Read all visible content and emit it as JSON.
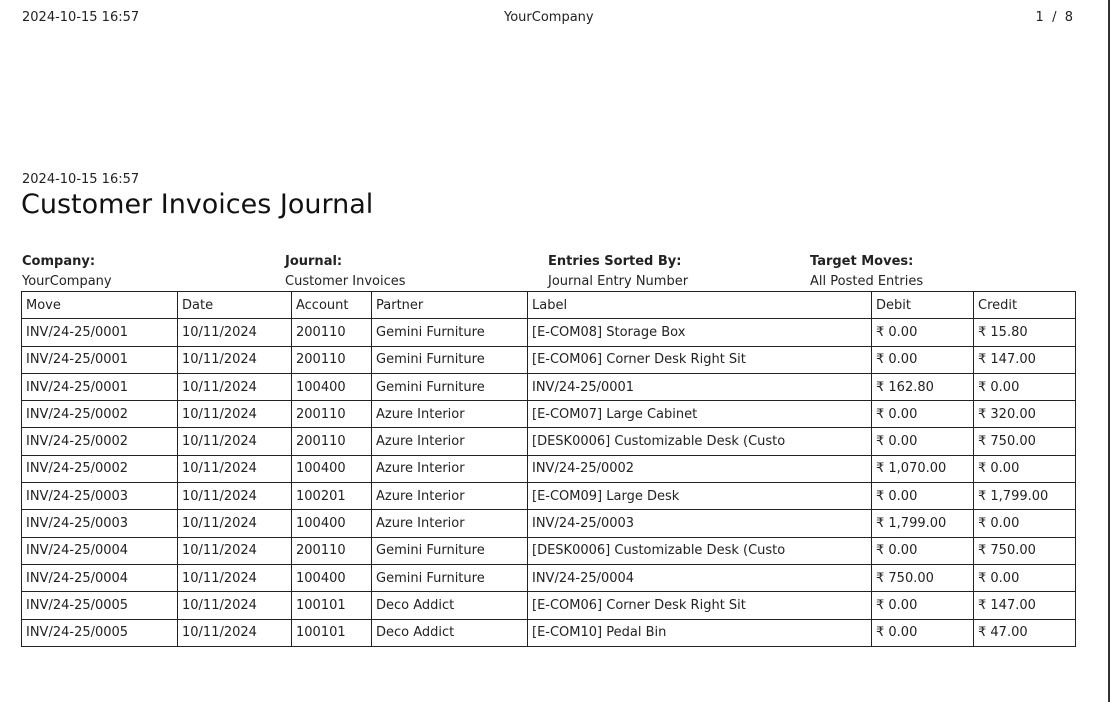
{
  "header": {
    "datetime": "2024-10-15 16:57",
    "company": "YourCompany",
    "page": "1  /  8"
  },
  "report": {
    "datetime": "2024-10-15 16:57",
    "title": "Customer Invoices Journal",
    "info": [
      {
        "label": "Company:",
        "value": "YourCompany"
      },
      {
        "label": "Journal:",
        "value": "Customer Invoices"
      },
      {
        "label": "Entries Sorted By:",
        "value": "Journal Entry Number"
      },
      {
        "label": "Target Moves:",
        "value": "All Posted Entries"
      }
    ],
    "columns": [
      "Move",
      "Date",
      "Account",
      "Partner",
      "Label",
      "Debit",
      "Credit"
    ],
    "rows": [
      [
        "INV/24-25/0001",
        "10/11/2024",
        "200110",
        "Gemini Furniture",
        "[E-COM08] Storage Box",
        "₹ 0.00",
        "₹ 15.80"
      ],
      [
        "INV/24-25/0001",
        "10/11/2024",
        "200110",
        "Gemini Furniture",
        "[E-COM06] Corner Desk Right Sit",
        "₹ 0.00",
        "₹ 147.00"
      ],
      [
        "INV/24-25/0001",
        "10/11/2024",
        "100400",
        "Gemini Furniture",
        "INV/24-25/0001",
        "₹ 162.80",
        "₹ 0.00"
      ],
      [
        "INV/24-25/0002",
        "10/11/2024",
        "200110",
        "Azure Interior",
        "[E-COM07] Large Cabinet",
        "₹ 0.00",
        "₹ 320.00"
      ],
      [
        "INV/24-25/0002",
        "10/11/2024",
        "200110",
        "Azure Interior",
        "[DESK0006] Customizable Desk (Custo",
        "₹ 0.00",
        "₹ 750.00"
      ],
      [
        "INV/24-25/0002",
        "10/11/2024",
        "100400",
        "Azure Interior",
        "INV/24-25/0002",
        "₹ 1,070.00",
        "₹ 0.00"
      ],
      [
        "INV/24-25/0003",
        "10/11/2024",
        "100201",
        "Azure Interior",
        "[E-COM09] Large Desk",
        "₹ 0.00",
        "₹ 1,799.00"
      ],
      [
        "INV/24-25/0003",
        "10/11/2024",
        "100400",
        "Azure Interior",
        "INV/24-25/0003",
        "₹ 1,799.00",
        "₹ 0.00"
      ],
      [
        "INV/24-25/0004",
        "10/11/2024",
        "200110",
        "Gemini Furniture",
        "[DESK0006] Customizable Desk (Custo",
        "₹ 0.00",
        "₹ 750.00"
      ],
      [
        "INV/24-25/0004",
        "10/11/2024",
        "100400",
        "Gemini Furniture",
        "INV/24-25/0004",
        "₹ 750.00",
        "₹ 0.00"
      ],
      [
        "INV/24-25/0005",
        "10/11/2024",
        "100101",
        "Deco Addict",
        "[E-COM06] Corner Desk Right Sit",
        "₹ 0.00",
        "₹ 147.00"
      ],
      [
        "INV/24-25/0005",
        "10/11/2024",
        "100101",
        "Deco Addict",
        "[E-COM10] Pedal Bin",
        "₹ 0.00",
        "₹ 47.00"
      ]
    ]
  }
}
